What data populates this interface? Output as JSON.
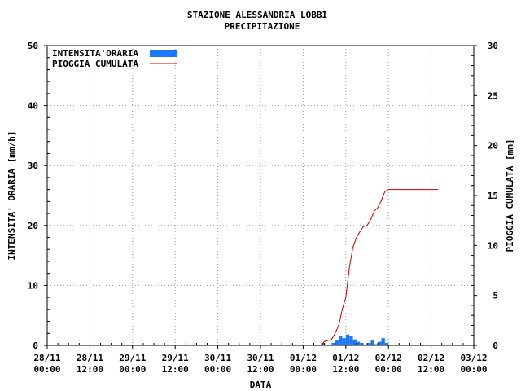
{
  "chart_data": {
    "type": "bar+line",
    "title": "STAZIONE ALESSANDRIA LOBBI",
    "subtitle": "PRECIPITAZIONE",
    "xlabel": "DATA",
    "ylabel_left": "INTENSITA' ORARIA [mm/h]",
    "ylabel_right": "PIOGGIA CUMULATA [mm]",
    "ylim_left": [
      0,
      50
    ],
    "ylim_right": [
      0,
      30
    ],
    "yticks_left": [
      0,
      10,
      20,
      30,
      40,
      50
    ],
    "yticks_right": [
      0,
      5,
      10,
      15,
      20,
      25,
      30
    ],
    "xlim_hours": [
      0,
      120
    ],
    "xticks": [
      {
        "hour": 0,
        "date": "28/11",
        "time": "00:00"
      },
      {
        "hour": 12,
        "date": "28/11",
        "time": "12:00"
      },
      {
        "hour": 24,
        "date": "29/11",
        "time": "00:00"
      },
      {
        "hour": 36,
        "date": "29/11",
        "time": "12:00"
      },
      {
        "hour": 48,
        "date": "30/11",
        "time": "00:00"
      },
      {
        "hour": 60,
        "date": "30/11",
        "time": "12:00"
      },
      {
        "hour": 72,
        "date": "01/12",
        "time": "00:00"
      },
      {
        "hour": 84,
        "date": "01/12",
        "time": "12:00"
      },
      {
        "hour": 96,
        "date": "02/12",
        "time": "00:00"
      },
      {
        "hour": 108,
        "date": "02/12",
        "time": "12:00"
      },
      {
        "hour": 120,
        "date": "03/12",
        "time": "00:00"
      }
    ],
    "grid": true,
    "legend_position": "top-left",
    "series": [
      {
        "name": "INTENSITA'ORARIA",
        "kind": "bar",
        "axis": "left",
        "color": "#1e78ff",
        "points": [
          {
            "x": 77.5,
            "y": 0.4
          },
          {
            "x": 80.5,
            "y": 0.4
          },
          {
            "x": 81.5,
            "y": 0.8
          },
          {
            "x": 82.5,
            "y": 1.6
          },
          {
            "x": 83.5,
            "y": 1.2
          },
          {
            "x": 84.5,
            "y": 1.8
          },
          {
            "x": 85.5,
            "y": 1.6
          },
          {
            "x": 86.5,
            "y": 1.0
          },
          {
            "x": 87.5,
            "y": 0.6
          },
          {
            "x": 88.5,
            "y": 0.4
          },
          {
            "x": 90.5,
            "y": 0.4
          },
          {
            "x": 91.5,
            "y": 0.8
          },
          {
            "x": 92.5,
            "y": 0.2
          },
          {
            "x": 93.5,
            "y": 0.6
          },
          {
            "x": 94.5,
            "y": 1.2
          },
          {
            "x": 95.5,
            "y": 0.4
          }
        ]
      },
      {
        "name": "PIOGGIA CUMULATA",
        "kind": "line",
        "axis": "right",
        "color": "#cc0000",
        "points": [
          {
            "x": 77.0,
            "y": 0.0
          },
          {
            "x": 78.0,
            "y": 0.4
          },
          {
            "x": 79.0,
            "y": 0.5
          },
          {
            "x": 80.0,
            "y": 0.6
          },
          {
            "x": 81.0,
            "y": 1.2
          },
          {
            "x": 82.0,
            "y": 2.0
          },
          {
            "x": 83.0,
            "y": 3.6
          },
          {
            "x": 84.0,
            "y": 4.8
          },
          {
            "x": 85.0,
            "y": 7.8
          },
          {
            "x": 86.0,
            "y": 9.8
          },
          {
            "x": 87.0,
            "y": 10.8
          },
          {
            "x": 88.0,
            "y": 11.4
          },
          {
            "x": 89.0,
            "y": 11.9
          },
          {
            "x": 90.0,
            "y": 12.0
          },
          {
            "x": 91.0,
            "y": 12.6
          },
          {
            "x": 92.0,
            "y": 13.4
          },
          {
            "x": 93.0,
            "y": 13.8
          },
          {
            "x": 94.0,
            "y": 14.5
          },
          {
            "x": 95.0,
            "y": 15.4
          },
          {
            "x": 96.0,
            "y": 15.6
          },
          {
            "x": 110.0,
            "y": 15.6
          }
        ]
      }
    ]
  }
}
